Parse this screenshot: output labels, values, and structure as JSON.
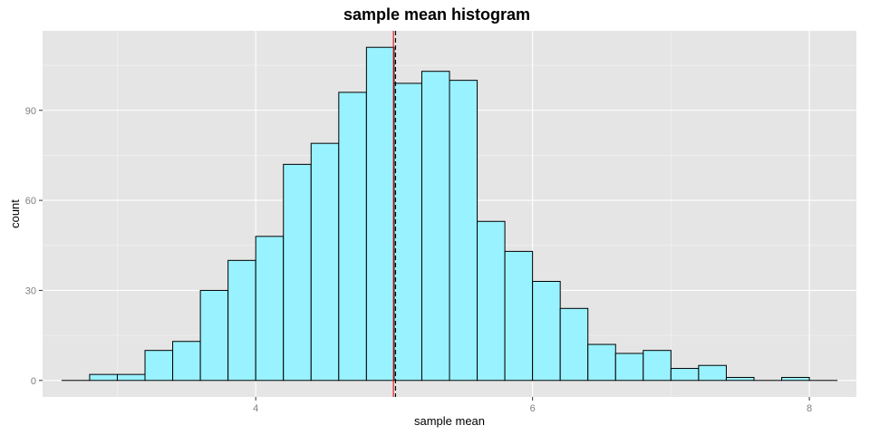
{
  "chart_data": {
    "type": "bar",
    "title": "sample mean histogram",
    "xlabel": "sample mean",
    "ylabel": "count",
    "bin_width": 0.2,
    "bins": [
      {
        "x0": 2.6,
        "x1": 2.8,
        "count": 0
      },
      {
        "x0": 2.8,
        "x1": 3.0,
        "count": 2
      },
      {
        "x0": 3.0,
        "x1": 3.2,
        "count": 2
      },
      {
        "x0": 3.2,
        "x1": 3.4,
        "count": 10
      },
      {
        "x0": 3.4,
        "x1": 3.6,
        "count": 13
      },
      {
        "x0": 3.6,
        "x1": 3.8,
        "count": 30
      },
      {
        "x0": 3.8,
        "x1": 4.0,
        "count": 40
      },
      {
        "x0": 4.0,
        "x1": 4.2,
        "count": 48
      },
      {
        "x0": 4.2,
        "x1": 4.4,
        "count": 72
      },
      {
        "x0": 4.4,
        "x1": 4.6,
        "count": 79
      },
      {
        "x0": 4.6,
        "x1": 4.8,
        "count": 96
      },
      {
        "x0": 4.8,
        "x1": 5.0,
        "count": 111
      },
      {
        "x0": 5.0,
        "x1": 5.2,
        "count": 99
      },
      {
        "x0": 5.2,
        "x1": 5.4,
        "count": 103
      },
      {
        "x0": 5.4,
        "x1": 5.6,
        "count": 100
      },
      {
        "x0": 5.6,
        "x1": 5.8,
        "count": 53
      },
      {
        "x0": 5.8,
        "x1": 6.0,
        "count": 43
      },
      {
        "x0": 6.0,
        "x1": 6.2,
        "count": 33
      },
      {
        "x0": 6.2,
        "x1": 6.4,
        "count": 24
      },
      {
        "x0": 6.4,
        "x1": 6.6,
        "count": 12
      },
      {
        "x0": 6.6,
        "x1": 6.8,
        "count": 9
      },
      {
        "x0": 6.8,
        "x1": 7.0,
        "count": 10
      },
      {
        "x0": 7.0,
        "x1": 7.2,
        "count": 4
      },
      {
        "x0": 7.2,
        "x1": 7.4,
        "count": 5
      },
      {
        "x0": 7.4,
        "x1": 7.6,
        "count": 1
      },
      {
        "x0": 7.6,
        "x1": 7.8,
        "count": 0
      },
      {
        "x0": 7.8,
        "x1": 8.0,
        "count": 1
      },
      {
        "x0": 8.0,
        "x1": 8.2,
        "count": 0
      }
    ],
    "vlines": [
      {
        "x": 4.995,
        "color": "#e41a1c",
        "style": "solid"
      },
      {
        "x": 5.01,
        "color": "#000000",
        "style": "dashed"
      }
    ],
    "xlim": [
      2.46,
      8.34
    ],
    "ylim": [
      -5.5,
      116.5
    ],
    "x_ticks": [
      4,
      6,
      8
    ],
    "x_tick_labels": [
      "4",
      "6",
      "8"
    ],
    "y_ticks": [
      0,
      30,
      60,
      90
    ],
    "y_tick_labels": [
      "0",
      "30",
      "60",
      "90"
    ],
    "grid": true,
    "colors": {
      "panel_background": "#e5e5e5",
      "grid_major": "#ffffff",
      "bar_fill": "#99f2ff",
      "bar_stroke": "#000000",
      "tick_label": "#7f7f7f"
    }
  }
}
